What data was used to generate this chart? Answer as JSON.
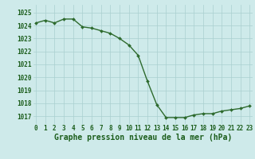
{
  "x": [
    0,
    1,
    2,
    3,
    4,
    5,
    6,
    7,
    8,
    9,
    10,
    11,
    12,
    13,
    14,
    15,
    16,
    17,
    18,
    19,
    20,
    21,
    22,
    23
  ],
  "y": [
    1024.2,
    1024.4,
    1024.2,
    1024.5,
    1024.5,
    1023.9,
    1023.8,
    1023.6,
    1023.4,
    1023.0,
    1022.5,
    1021.7,
    1019.7,
    1017.9,
    1016.9,
    1016.9,
    1016.9,
    1017.1,
    1017.2,
    1017.2,
    1017.4,
    1017.5,
    1017.6,
    1017.8
  ],
  "line_color": "#2d6a2d",
  "marker_color": "#2d6a2d",
  "bg_color": "#ceeaea",
  "grid_color_major": "#aacfcf",
  "grid_color_minor": "#bbdada",
  "title": "Graphe pression niveau de la mer (hPa)",
  "ylim_min": 1016.4,
  "ylim_max": 1025.6,
  "yticks": [
    1017,
    1018,
    1019,
    1020,
    1021,
    1022,
    1023,
    1024,
    1025
  ],
  "xticks": [
    0,
    1,
    2,
    3,
    4,
    5,
    6,
    7,
    8,
    9,
    10,
    11,
    12,
    13,
    14,
    15,
    16,
    17,
    18,
    19,
    20,
    21,
    22,
    23
  ],
  "tick_label_color": "#1a5c1a",
  "title_color": "#1a5c1a",
  "title_fontsize": 7.0,
  "tick_fontsize": 5.5,
  "line_width": 1.0,
  "marker_size": 2.0,
  "xlim_min": -0.3,
  "xlim_max": 23.3
}
